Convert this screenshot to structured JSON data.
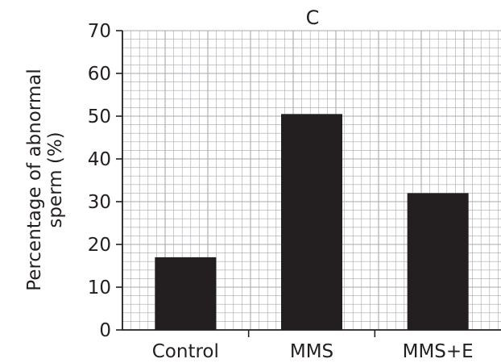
{
  "chart_data": {
    "type": "bar",
    "title": "C",
    "xlabel": "",
    "ylabel": [
      "Percentage of abnormal",
      "sperm (%)"
    ],
    "categories": [
      "Control",
      "MMS",
      "MMS+E"
    ],
    "values": [
      17,
      50.5,
      32
    ],
    "ylim": [
      0,
      70
    ],
    "yticks": [
      0,
      10,
      20,
      30,
      40,
      50,
      60,
      70
    ],
    "grid": true,
    "bar_color": "#231f20",
    "grid_color": "#a7a9ac"
  }
}
